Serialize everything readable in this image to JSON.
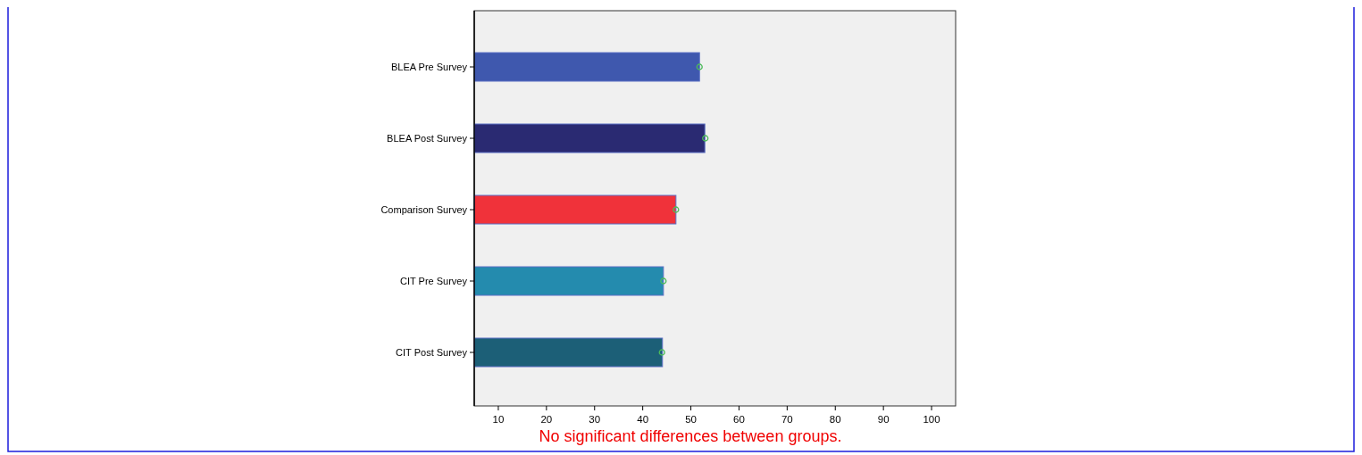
{
  "chart_data": {
    "type": "bar",
    "orientation": "horizontal",
    "categories": [
      "BLEA Pre Survey",
      "BLEA Post Survey",
      "Comparison Survey",
      "CIT Pre Survey",
      "CIT Post Survey"
    ],
    "series": [
      {
        "type": "bar",
        "colors": [
          "#3f58ae",
          "#2a2a72",
          "#f0323a",
          "#248bae",
          "#1c5f77"
        ],
        "values": [
          51.8,
          52.9,
          46.9,
          44.3,
          44.1
        ]
      },
      {
        "type": "scatter",
        "color": "#4dbb5a",
        "marker": "circle",
        "x": [
          "BLEA Pre Survey",
          "BLEA Post Survey",
          "Comparison Survey",
          "CIT Pre Survey",
          "CIT Post Survey"
        ],
        "values": [
          51.8,
          53.0,
          46.9,
          44.3,
          44.0
        ]
      }
    ],
    "xlim": [
      5,
      105
    ],
    "xticks": [
      10,
      20,
      30,
      40,
      50,
      60,
      70,
      80,
      90,
      100
    ],
    "grid": false,
    "annotations": [
      "No significant differences between groups."
    ]
  }
}
